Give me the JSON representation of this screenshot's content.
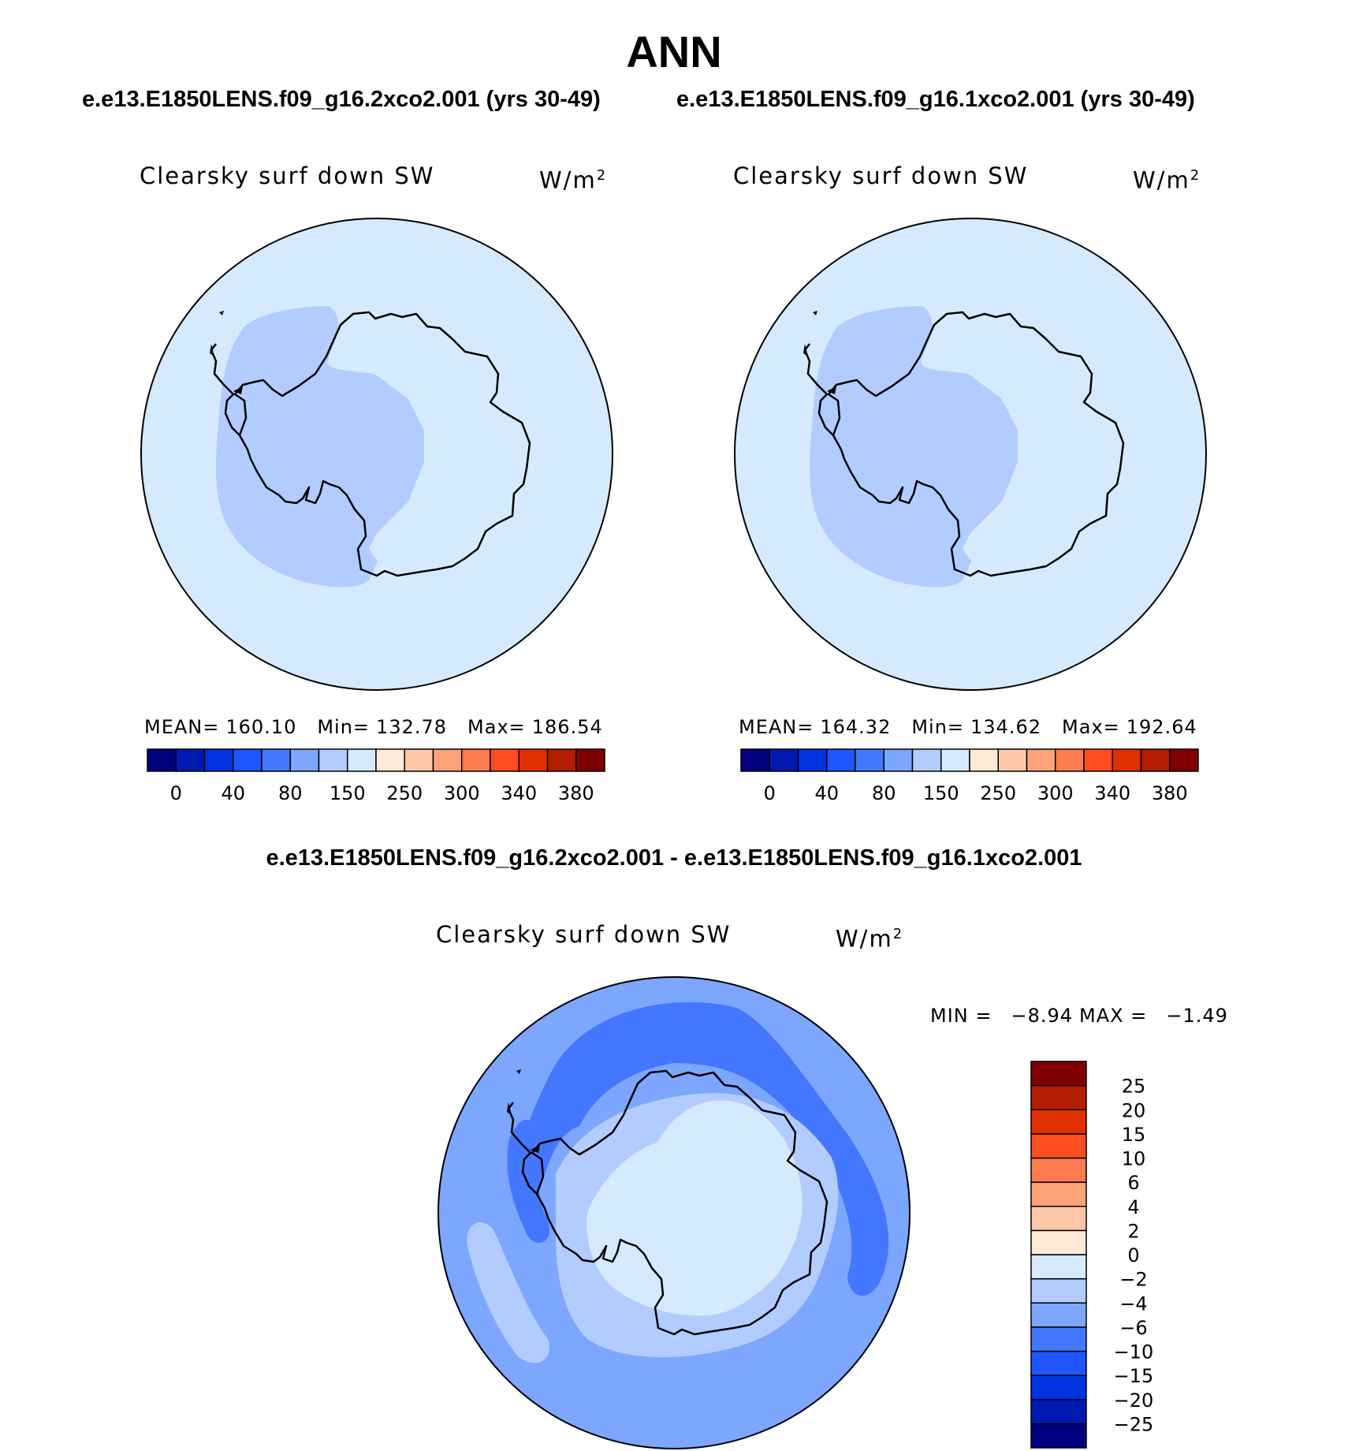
{
  "figure": {
    "title": "ANN",
    "case_titles": [
      "e.e13.E1850LENS.f09_g16.2xco2.001 (yrs 30-49)",
      "e.e13.E1850LENS.f09_g16.1xco2.001 (yrs 30-49)"
    ],
    "diff_title": "e.e13.E1850LENS.f09_g16.2xco2.001 - e.e13.E1850LENS.f09_g16.1xco2.001"
  },
  "chart_data": [
    {
      "type": "heatmap",
      "projection": "south polar stereographic",
      "variable_label": "Clearsky surf down SW",
      "units": "W/m",
      "units_exponent": "2",
      "stats": {
        "mean_label": "MEAN=",
        "mean": "160.10",
        "min_label": "Min=",
        "min": "132.78",
        "max_label": "Max=",
        "max": "186.54"
      },
      "colorbar": {
        "orientation": "horizontal",
        "colors": [
          "#000080",
          "#0019b3",
          "#0033e0",
          "#1f55ff",
          "#4477ff",
          "#7da6ff",
          "#b3ccff",
          "#d6eaff",
          "#ffead8",
          "#ffc7a8",
          "#ffa27a",
          "#ff7a4e",
          "#ff4d1f",
          "#e03000",
          "#b31c00",
          "#800000"
        ],
        "tick_labels": [
          "0",
          "40",
          "80",
          "150",
          "250",
          "300",
          "340",
          "380"
        ]
      },
      "field": {
        "ocean_color": "#d6eaff",
        "low_color": "#b3ccff",
        "interior_color": "#d6eaff"
      }
    },
    {
      "type": "heatmap",
      "projection": "south polar stereographic",
      "variable_label": "Clearsky surf down SW",
      "units": "W/m",
      "units_exponent": "2",
      "stats": {
        "mean_label": "MEAN=",
        "mean": "164.32",
        "min_label": "Min=",
        "min": "134.62",
        "max_label": "Max=",
        "max": "192.64"
      },
      "colorbar": {
        "orientation": "horizontal",
        "colors": [
          "#000080",
          "#0019b3",
          "#0033e0",
          "#1f55ff",
          "#4477ff",
          "#7da6ff",
          "#b3ccff",
          "#d6eaff",
          "#ffead8",
          "#ffc7a8",
          "#ffa27a",
          "#ff7a4e",
          "#ff4d1f",
          "#e03000",
          "#b31c00",
          "#800000"
        ],
        "tick_labels": [
          "0",
          "40",
          "80",
          "150",
          "250",
          "300",
          "340",
          "380"
        ]
      },
      "field": {
        "ocean_color": "#d6eaff",
        "low_color": "#b3ccff",
        "interior_color": "#d6eaff"
      }
    },
    {
      "type": "heatmap",
      "projection": "south polar stereographic",
      "variable_label": "Clearsky surf down SW",
      "units": "W/m",
      "units_exponent": "2",
      "stats": {
        "min_label": "MIN =",
        "min": "−8.94",
        "max_label": "MAX =",
        "max": "−1.49"
      },
      "colorbar": {
        "orientation": "vertical",
        "colors_bottom_to_top": [
          "#000080",
          "#0019b3",
          "#0033e0",
          "#1f55ff",
          "#4477ff",
          "#7da6ff",
          "#b3ccff",
          "#d6eaff",
          "#ffead8",
          "#ffc7a8",
          "#ffa27a",
          "#ff7a4e",
          "#ff4d1f",
          "#e03000",
          "#b31c00",
          "#800000"
        ],
        "tick_labels_bottom_to_top": [
          "−25",
          "−20",
          "−15",
          "−10",
          "−6",
          "−4",
          "−2",
          "0",
          "2",
          "4",
          "6",
          "10",
          "15",
          "20",
          "25"
        ]
      },
      "field": {
        "ocean_color": "#7da6ff",
        "band_color": "#4477ff",
        "mid_color": "#b3ccff",
        "interior_color": "#d6eaff"
      }
    }
  ]
}
